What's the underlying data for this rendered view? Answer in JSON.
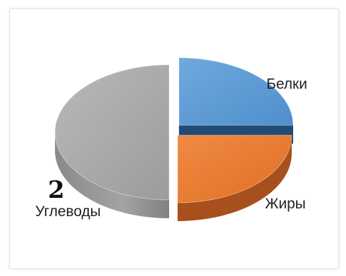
{
  "chart_data": {
    "type": "pie",
    "title": "",
    "three_d": true,
    "exploded": true,
    "slices": [
      {
        "label": "Белки",
        "value": 25,
        "color": "#5b9bd5",
        "side_color": "#234a73"
      },
      {
        "label": "Жиры",
        "value": 25,
        "color": "#ed7d31",
        "side_color": "#a8501d"
      },
      {
        "label": "Углеводы",
        "value": 50,
        "color": "#a5a5a5",
        "side_color": "#7a7a7a"
      }
    ],
    "annotations": [
      {
        "text": "2",
        "near": "Углеводы"
      }
    ],
    "legend": "none"
  }
}
